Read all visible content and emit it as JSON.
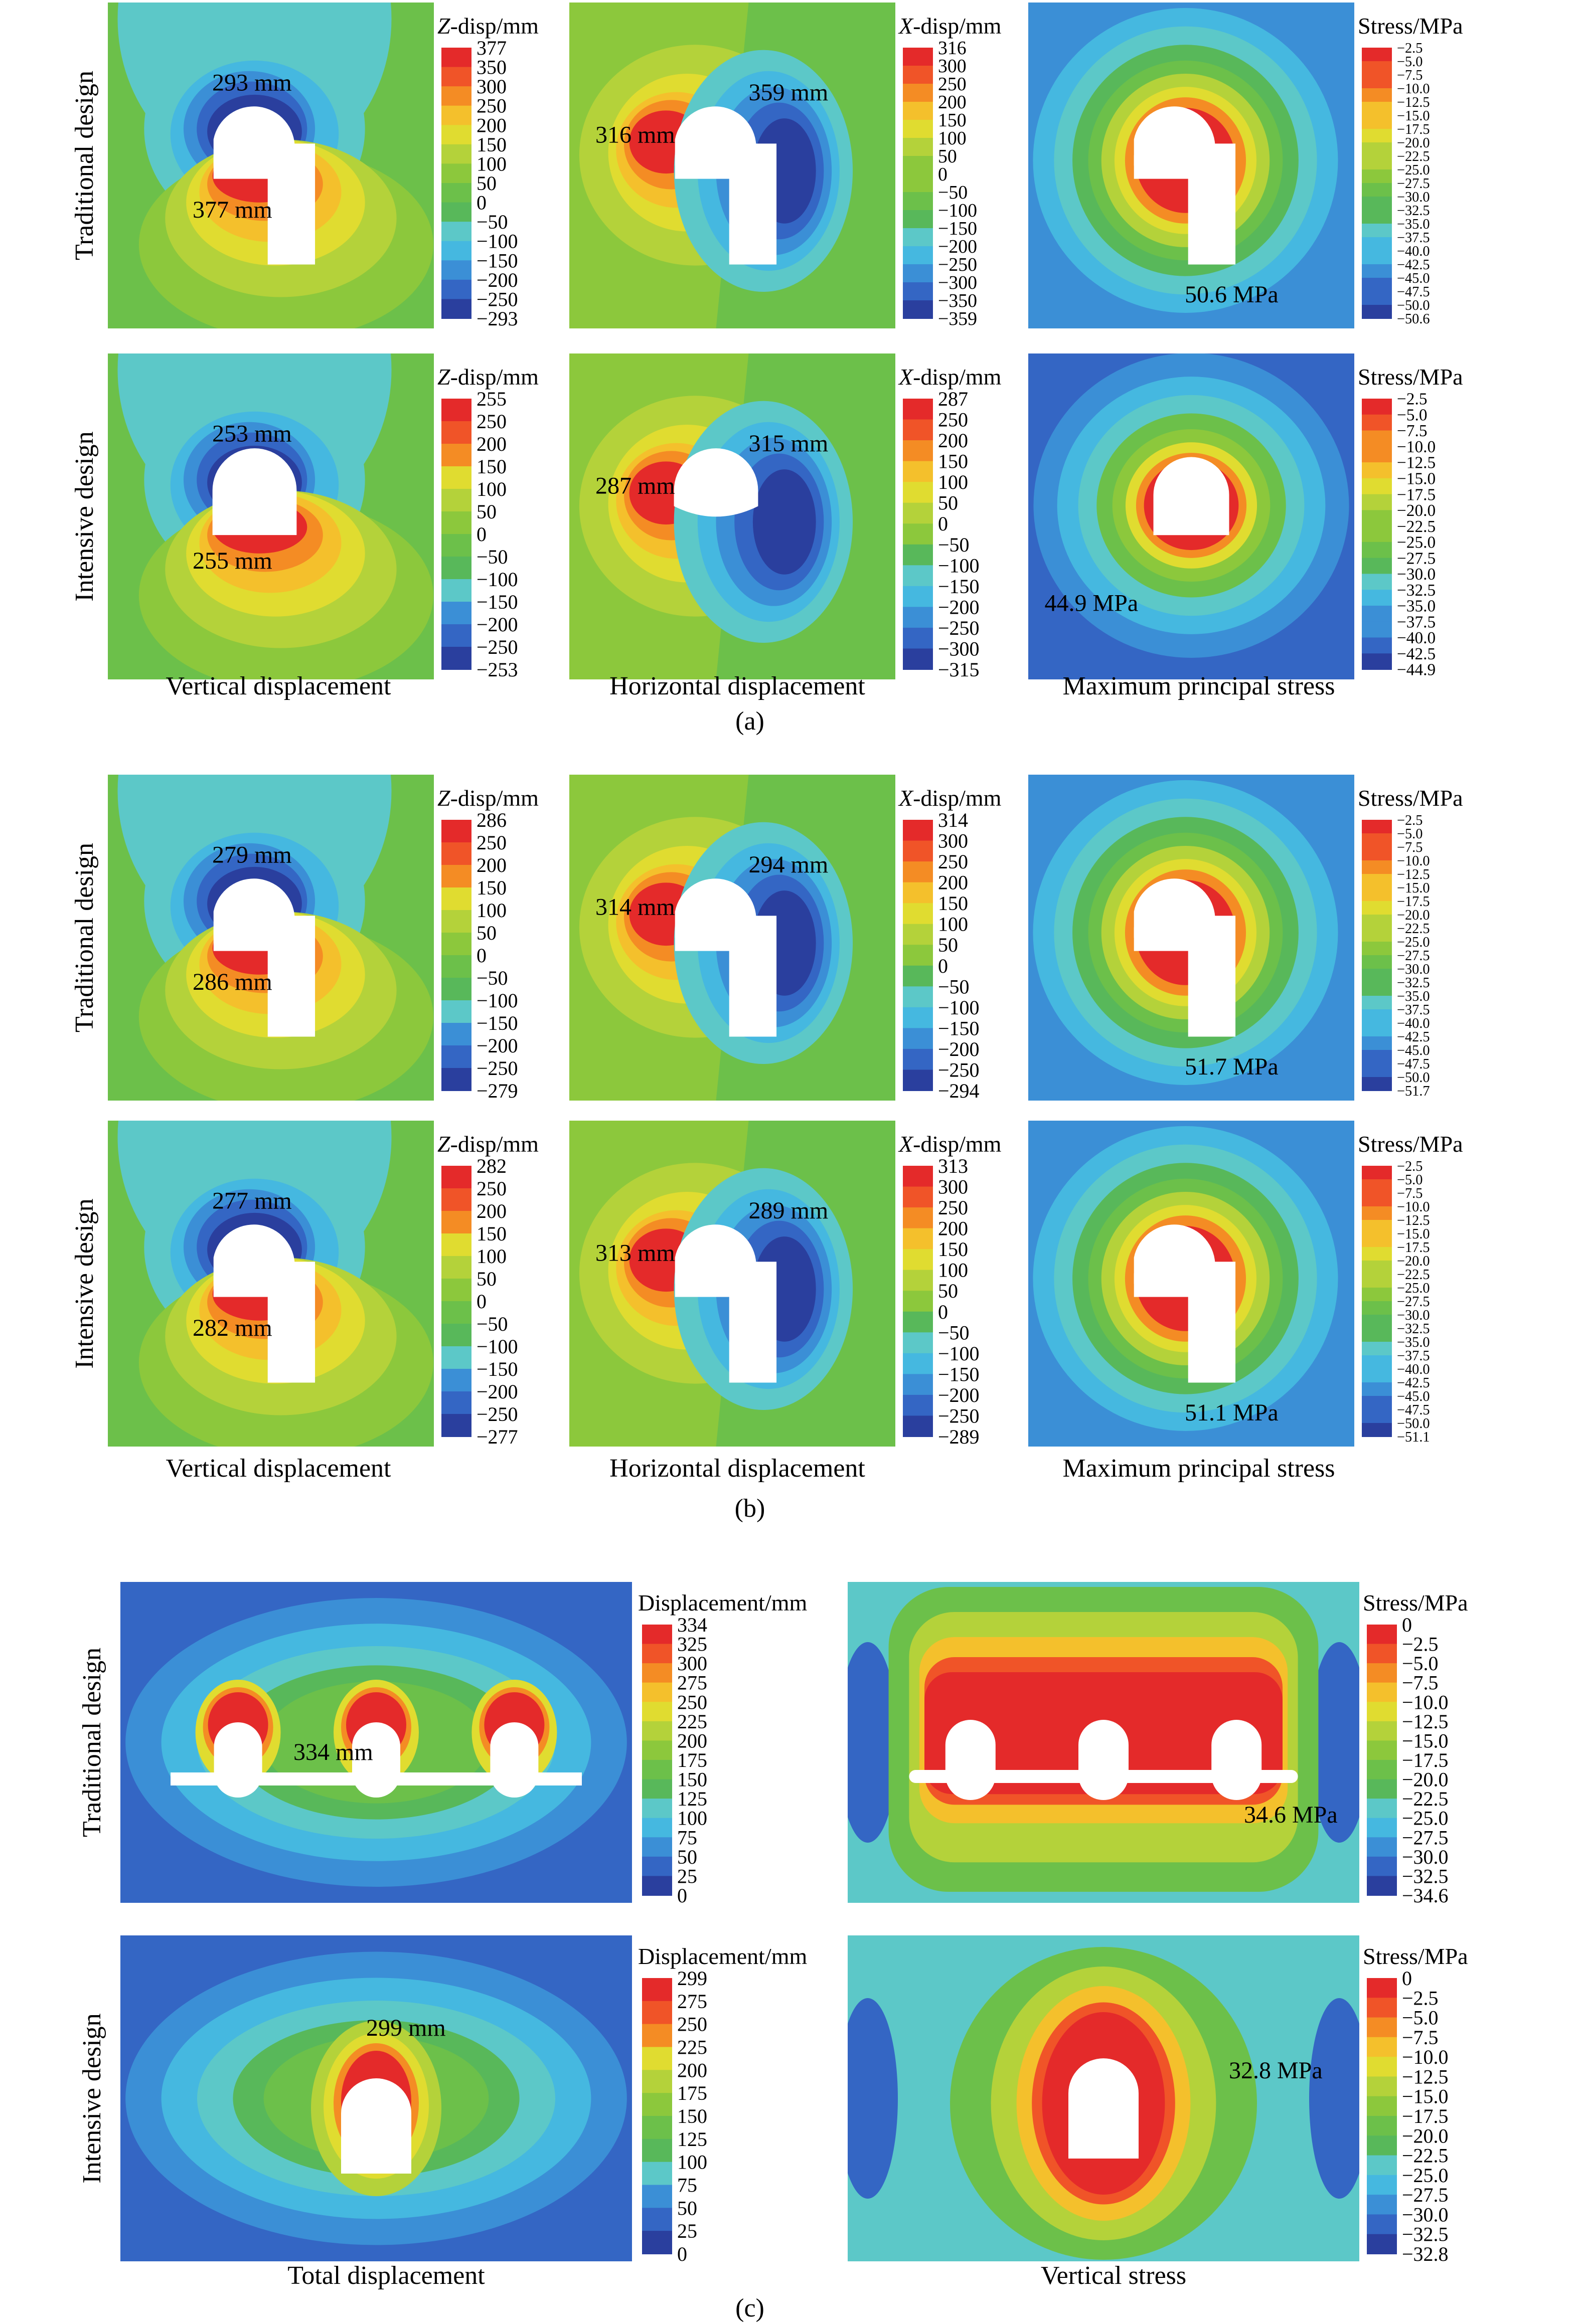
{
  "colors": {
    "scale": [
      "#2a3f9e",
      "#3466c4",
      "#3b8fd6",
      "#45b8e0",
      "#5cc8c8",
      "#58b85a",
      "#6cc04a",
      "#8cc83c",
      "#b4d23a",
      "#e0dc30",
      "#f4c02c",
      "#f48c24",
      "#f05428",
      "#e42a2a"
    ],
    "hole": "#ffffff",
    "text": "#000000"
  },
  "panels": {
    "a": {
      "tag": "(a)",
      "row_labels": [
        "Traditional design",
        "Intensive design"
      ],
      "col_labels": [
        "Vertical displacement",
        "Horizontal displacement",
        "Maximum principal stress"
      ],
      "rows": [
        [
          {
            "legend_title_var": "Z",
            "legend_title_rest": "-disp/mm",
            "ticks": [
              "377",
              "350",
              "300",
              "250",
              "200",
              "150",
              "100",
              "50",
              "0",
              "−50",
              "−100",
              "−150",
              "−200",
              "−250",
              "−293"
            ],
            "annotations": [
              "293 mm",
              "377 mm"
            ]
          },
          {
            "legend_title_var": "X",
            "legend_title_rest": "-disp/mm",
            "ticks": [
              "316",
              "300",
              "250",
              "200",
              "150",
              "100",
              "50",
              "0",
              "−50",
              "−100",
              "−150",
              "−200",
              "−250",
              "−300",
              "−350",
              "−359"
            ],
            "annotations": [
              "316 mm",
              "359 mm"
            ]
          },
          {
            "legend_title_var": "",
            "legend_title_rest": "Stress/MPa",
            "ticks": [
              "−2.5",
              "−5.0",
              "−7.5",
              "−10.0",
              "−12.5",
              "−15.0",
              "−17.5",
              "−20.0",
              "−22.5",
              "−25.0",
              "−27.5",
              "−30.0",
              "−32.5",
              "−35.0",
              "−37.5",
              "−40.0",
              "−42.5",
              "−45.0",
              "−47.5",
              "−50.0",
              "−50.6"
            ],
            "annotations": [
              "50.6 MPa"
            ]
          }
        ],
        [
          {
            "legend_title_var": "Z",
            "legend_title_rest": "-disp/mm",
            "ticks": [
              "255",
              "250",
              "200",
              "150",
              "100",
              "50",
              "0",
              "−50",
              "−100",
              "−150",
              "−200",
              "−250",
              "−253"
            ],
            "annotations": [
              "253 mm",
              "255 mm"
            ]
          },
          {
            "legend_title_var": "X",
            "legend_title_rest": "-disp/mm",
            "ticks": [
              "287",
              "250",
              "200",
              "150",
              "100",
              "50",
              "0",
              "−50",
              "−100",
              "−150",
              "−200",
              "−250",
              "−300",
              "−315"
            ],
            "annotations": [
              "287 mm",
              "315 mm"
            ]
          },
          {
            "legend_title_var": "",
            "legend_title_rest": "Stress/MPa",
            "ticks": [
              "−2.5",
              "−5.0",
              "−7.5",
              "−10.0",
              "−12.5",
              "−15.0",
              "−17.5",
              "−20.0",
              "−22.5",
              "−25.0",
              "−27.5",
              "−30.0",
              "−32.5",
              "−35.0",
              "−37.5",
              "−40.0",
              "−42.5",
              "−44.9"
            ],
            "annotations": [
              "44.9 MPa"
            ]
          }
        ]
      ]
    },
    "b": {
      "tag": "(b)",
      "row_labels": [
        "Traditional design",
        "Intensive design"
      ],
      "col_labels": [
        "Vertical displacement",
        "Horizontal displacement",
        "Maximum principal stress"
      ],
      "rows": [
        [
          {
            "legend_title_var": "Z",
            "legend_title_rest": "-disp/mm",
            "ticks": [
              "286",
              "250",
              "200",
              "150",
              "100",
              "50",
              "0",
              "−50",
              "−100",
              "−150",
              "−200",
              "−250",
              "−279"
            ],
            "annotations": [
              "279 mm",
              "286 mm"
            ]
          },
          {
            "legend_title_var": "X",
            "legend_title_rest": "-disp/mm",
            "ticks": [
              "314",
              "300",
              "250",
              "200",
              "150",
              "100",
              "50",
              "0",
              "−50",
              "−100",
              "−150",
              "−200",
              "−250",
              "−294"
            ],
            "annotations": [
              "314 mm",
              "294 mm"
            ]
          },
          {
            "legend_title_var": "",
            "legend_title_rest": "Stress/MPa",
            "ticks": [
              "−2.5",
              "−5.0",
              "−7.5",
              "−10.0",
              "−12.5",
              "−15.0",
              "−17.5",
              "−20.0",
              "−22.5",
              "−25.0",
              "−27.5",
              "−30.0",
              "−32.5",
              "−35.0",
              "−37.5",
              "−40.0",
              "−42.5",
              "−45.0",
              "−47.5",
              "−50.0",
              "−51.7"
            ],
            "annotations": [
              "51.7 MPa"
            ]
          }
        ],
        [
          {
            "legend_title_var": "Z",
            "legend_title_rest": "-disp/mm",
            "ticks": [
              "282",
              "250",
              "200",
              "150",
              "100",
              "50",
              "0",
              "−50",
              "−100",
              "−150",
              "−200",
              "−250",
              "−277"
            ],
            "annotations": [
              "277 mm",
              "282 mm"
            ]
          },
          {
            "legend_title_var": "X",
            "legend_title_rest": "-disp/mm",
            "ticks": [
              "313",
              "300",
              "250",
              "200",
              "150",
              "100",
              "50",
              "0",
              "−50",
              "−100",
              "−150",
              "−200",
              "−250",
              "−289"
            ],
            "annotations": [
              "313 mm",
              "289 mm"
            ]
          },
          {
            "legend_title_var": "",
            "legend_title_rest": "Stress/MPa",
            "ticks": [
              "−2.5",
              "−5.0",
              "−7.5",
              "−10.0",
              "−12.5",
              "−15.0",
              "−17.5",
              "−20.0",
              "−22.5",
              "−25.0",
              "−27.5",
              "−30.0",
              "−32.5",
              "−35.0",
              "−37.5",
              "−40.0",
              "−42.5",
              "−45.0",
              "−47.5",
              "−50.0",
              "−51.1"
            ],
            "annotations": [
              "51.1 MPa"
            ]
          }
        ]
      ]
    },
    "c": {
      "tag": "(c)",
      "row_labels": [
        "Traditional design",
        "Intensive design"
      ],
      "col_labels": [
        "Total displacement",
        "Vertical stress"
      ],
      "rows": [
        [
          {
            "legend_title_var": "",
            "legend_title_rest": "Displacement/mm",
            "ticks": [
              "334",
              "325",
              "300",
              "275",
              "250",
              "225",
              "200",
              "175",
              "150",
              "125",
              "100",
              "75",
              "50",
              "25",
              "0"
            ],
            "annotations": [
              "334 mm"
            ]
          },
          {
            "legend_title_var": "",
            "legend_title_rest": "Stress/MPa",
            "ticks": [
              "0",
              "−2.5",
              "−5.0",
              "−7.5",
              "−10.0",
              "−12.5",
              "−15.0",
              "−17.5",
              "−20.0",
              "−22.5",
              "−25.0",
              "−27.5",
              "−30.0",
              "−32.5",
              "−34.6"
            ],
            "annotations": [
              "34.6 MPa"
            ]
          }
        ],
        [
          {
            "legend_title_var": "",
            "legend_title_rest": "Displacement/mm",
            "ticks": [
              "299",
              "275",
              "250",
              "225",
              "200",
              "175",
              "150",
              "125",
              "100",
              "75",
              "50",
              "25",
              "0"
            ],
            "annotations": [
              "299 mm"
            ]
          },
          {
            "legend_title_var": "",
            "legend_title_rest": "Stress/MPa",
            "ticks": [
              "0",
              "−2.5",
              "−5.0",
              "−7.5",
              "−10.0",
              "−12.5",
              "−15.0",
              "−17.5",
              "−20.0",
              "−22.5",
              "−25.0",
              "−27.5",
              "−30.0",
              "−32.5",
              "−32.8"
            ],
            "annotations": [
              "32.8 MPa"
            ]
          }
        ]
      ]
    }
  }
}
